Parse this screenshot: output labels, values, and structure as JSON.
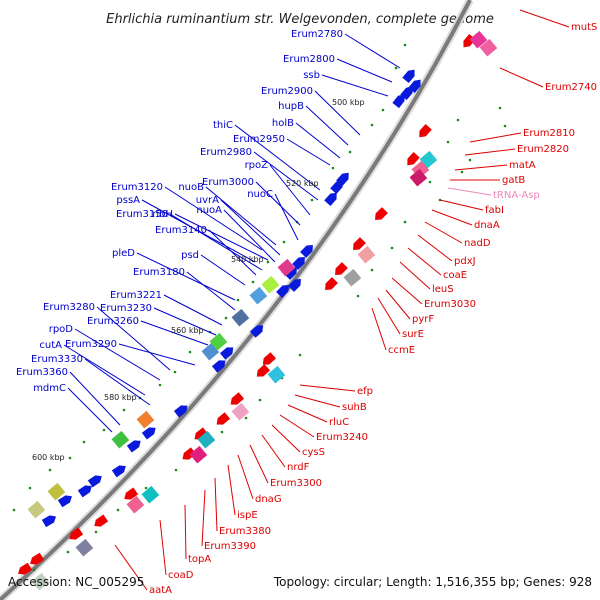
{
  "title": "Ehrlichia ruminantium str. Welgevonden, complete genome",
  "footer": {
    "accession": "Accession: NC_005295",
    "topology": "Topology: circular; Length: 1,516,355 bp; Genes: 928"
  },
  "colors": {
    "backbone": "#7a7a7a",
    "forward_label": "#0000cc",
    "reverse_label": "#dd0000",
    "trna_label": "#ee88bb",
    "forward_arrow": "#0a1adc",
    "reverse_arrow": "#ee0000",
    "dots": "#1a8a1a"
  },
  "kbp_ticks": [
    "500 kbp",
    "520 kbp",
    "540 kbp",
    "560 kbp",
    "580 kbp",
    "600 kbp"
  ],
  "forward_genes": [
    "Erum2780",
    "Erum2800",
    "ssb",
    "Erum2900",
    "hupB",
    "holB",
    "thiC",
    "Erum2950",
    "Erum2980",
    "rpoZ",
    "Erum3000",
    "nuoC",
    "Erum3120",
    "nuoB",
    "pssA",
    "uvrA",
    "nuoA",
    "Erum3150",
    "ribH",
    "Erum3140",
    "pleD",
    "psd",
    "Erum3180",
    "Erum3221",
    "Erum3230",
    "Erum3280",
    "Erum3260",
    "rpoD",
    "Erum3290",
    "cutA",
    "Erum3330",
    "Erum3360",
    "mdmC"
  ],
  "reverse_genes": [
    "mutS",
    "Erum2740",
    "Erum2810",
    "Erum2820",
    "matA",
    "gatB",
    "tRNA-Asp",
    "fabI",
    "dnaA",
    "nadD",
    "pdxJ",
    "coaE",
    "leuS",
    "Erum3030",
    "pyrF",
    "surE",
    "ccmE",
    "efp",
    "suhB",
    "rluC",
    "Erum3240",
    "cysS",
    "nrdF",
    "Erum3300",
    "dnaG",
    "ispE",
    "Erum3380",
    "Erum3390",
    "topA",
    "coaD",
    "aatA"
  ]
}
